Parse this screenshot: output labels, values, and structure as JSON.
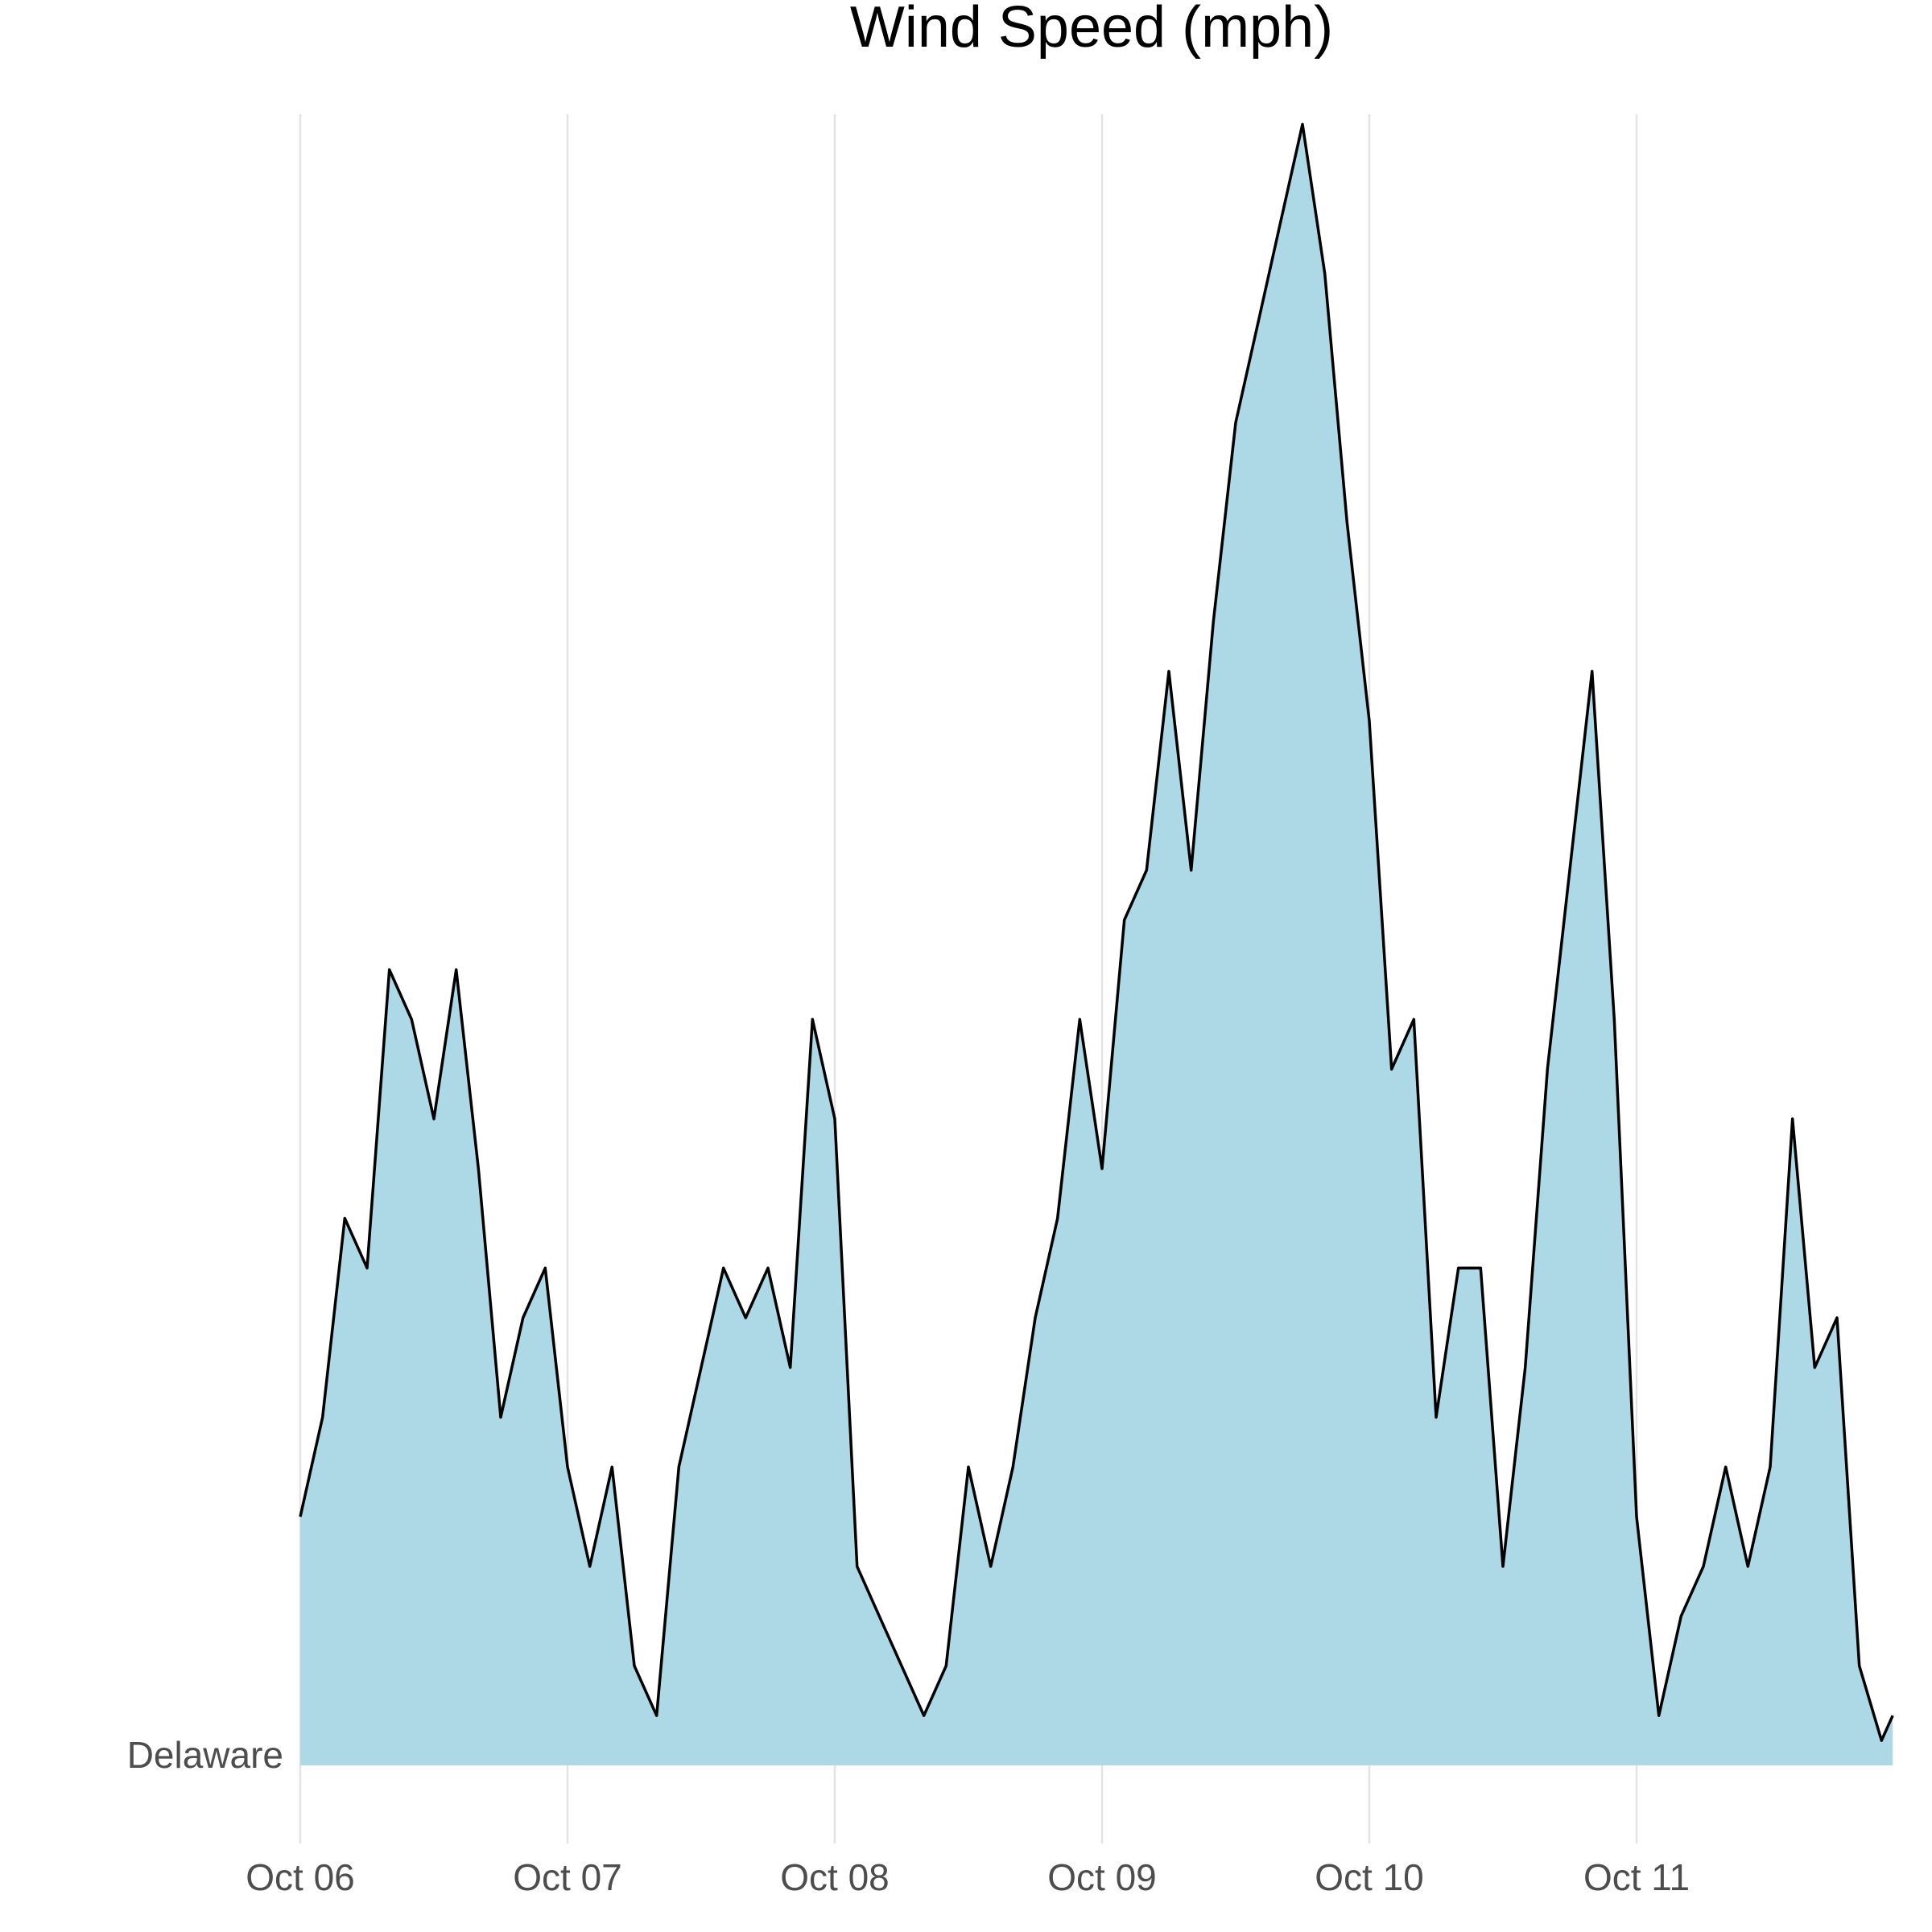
{
  "chart_data": {
    "type": "area",
    "title": "Wind Speed (mph)",
    "xlabel": "",
    "ylabel": "",
    "y_category_label": "Delaware",
    "x_tick_labels": [
      "Oct 06",
      "Oct 07",
      "Oct 08",
      "Oct 09",
      "Oct 10",
      "Oct 11"
    ],
    "x_unit": "hours since Oct 06 00:00",
    "xlim": [
      0,
      143
    ],
    "ylim": [
      0,
      33.2
    ],
    "grid": "vertical",
    "fill_color": "#add8e6",
    "line_color": "#000000",
    "series": [
      {
        "x": [
          0,
          2,
          4,
          6,
          8,
          10,
          12,
          14,
          16,
          18,
          20,
          22,
          24,
          26,
          28,
          30,
          32,
          34,
          36,
          38,
          40,
          42,
          44,
          46,
          48,
          50,
          52,
          54,
          56,
          58,
          60,
          62,
          64,
          66,
          68,
          70,
          72,
          74,
          76,
          78,
          80,
          82,
          84,
          86,
          88,
          90,
          92,
          94,
          96,
          98,
          100,
          102,
          104,
          106,
          108,
          110,
          112,
          114,
          116,
          118,
          120,
          122,
          124,
          126,
          128,
          130,
          132,
          134,
          136,
          138,
          140,
          142,
          143
        ],
        "values": [
          5,
          7,
          11,
          10,
          16,
          15,
          13,
          16,
          12,
          7,
          9,
          10,
          6,
          4,
          6,
          2,
          1,
          6,
          8,
          10,
          9,
          10,
          8,
          15,
          13,
          4,
          3,
          2,
          1,
          2,
          6,
          4,
          6,
          9,
          11,
          15,
          12,
          17,
          18,
          22,
          18,
          23,
          27,
          29,
          31,
          33,
          30,
          25,
          21,
          14,
          15,
          7,
          10,
          10,
          4,
          8,
          14,
          18,
          22,
          15,
          5,
          1,
          3,
          4,
          6,
          4,
          6,
          13,
          8,
          9,
          2,
          0.5,
          1
        ]
      }
    ]
  }
}
